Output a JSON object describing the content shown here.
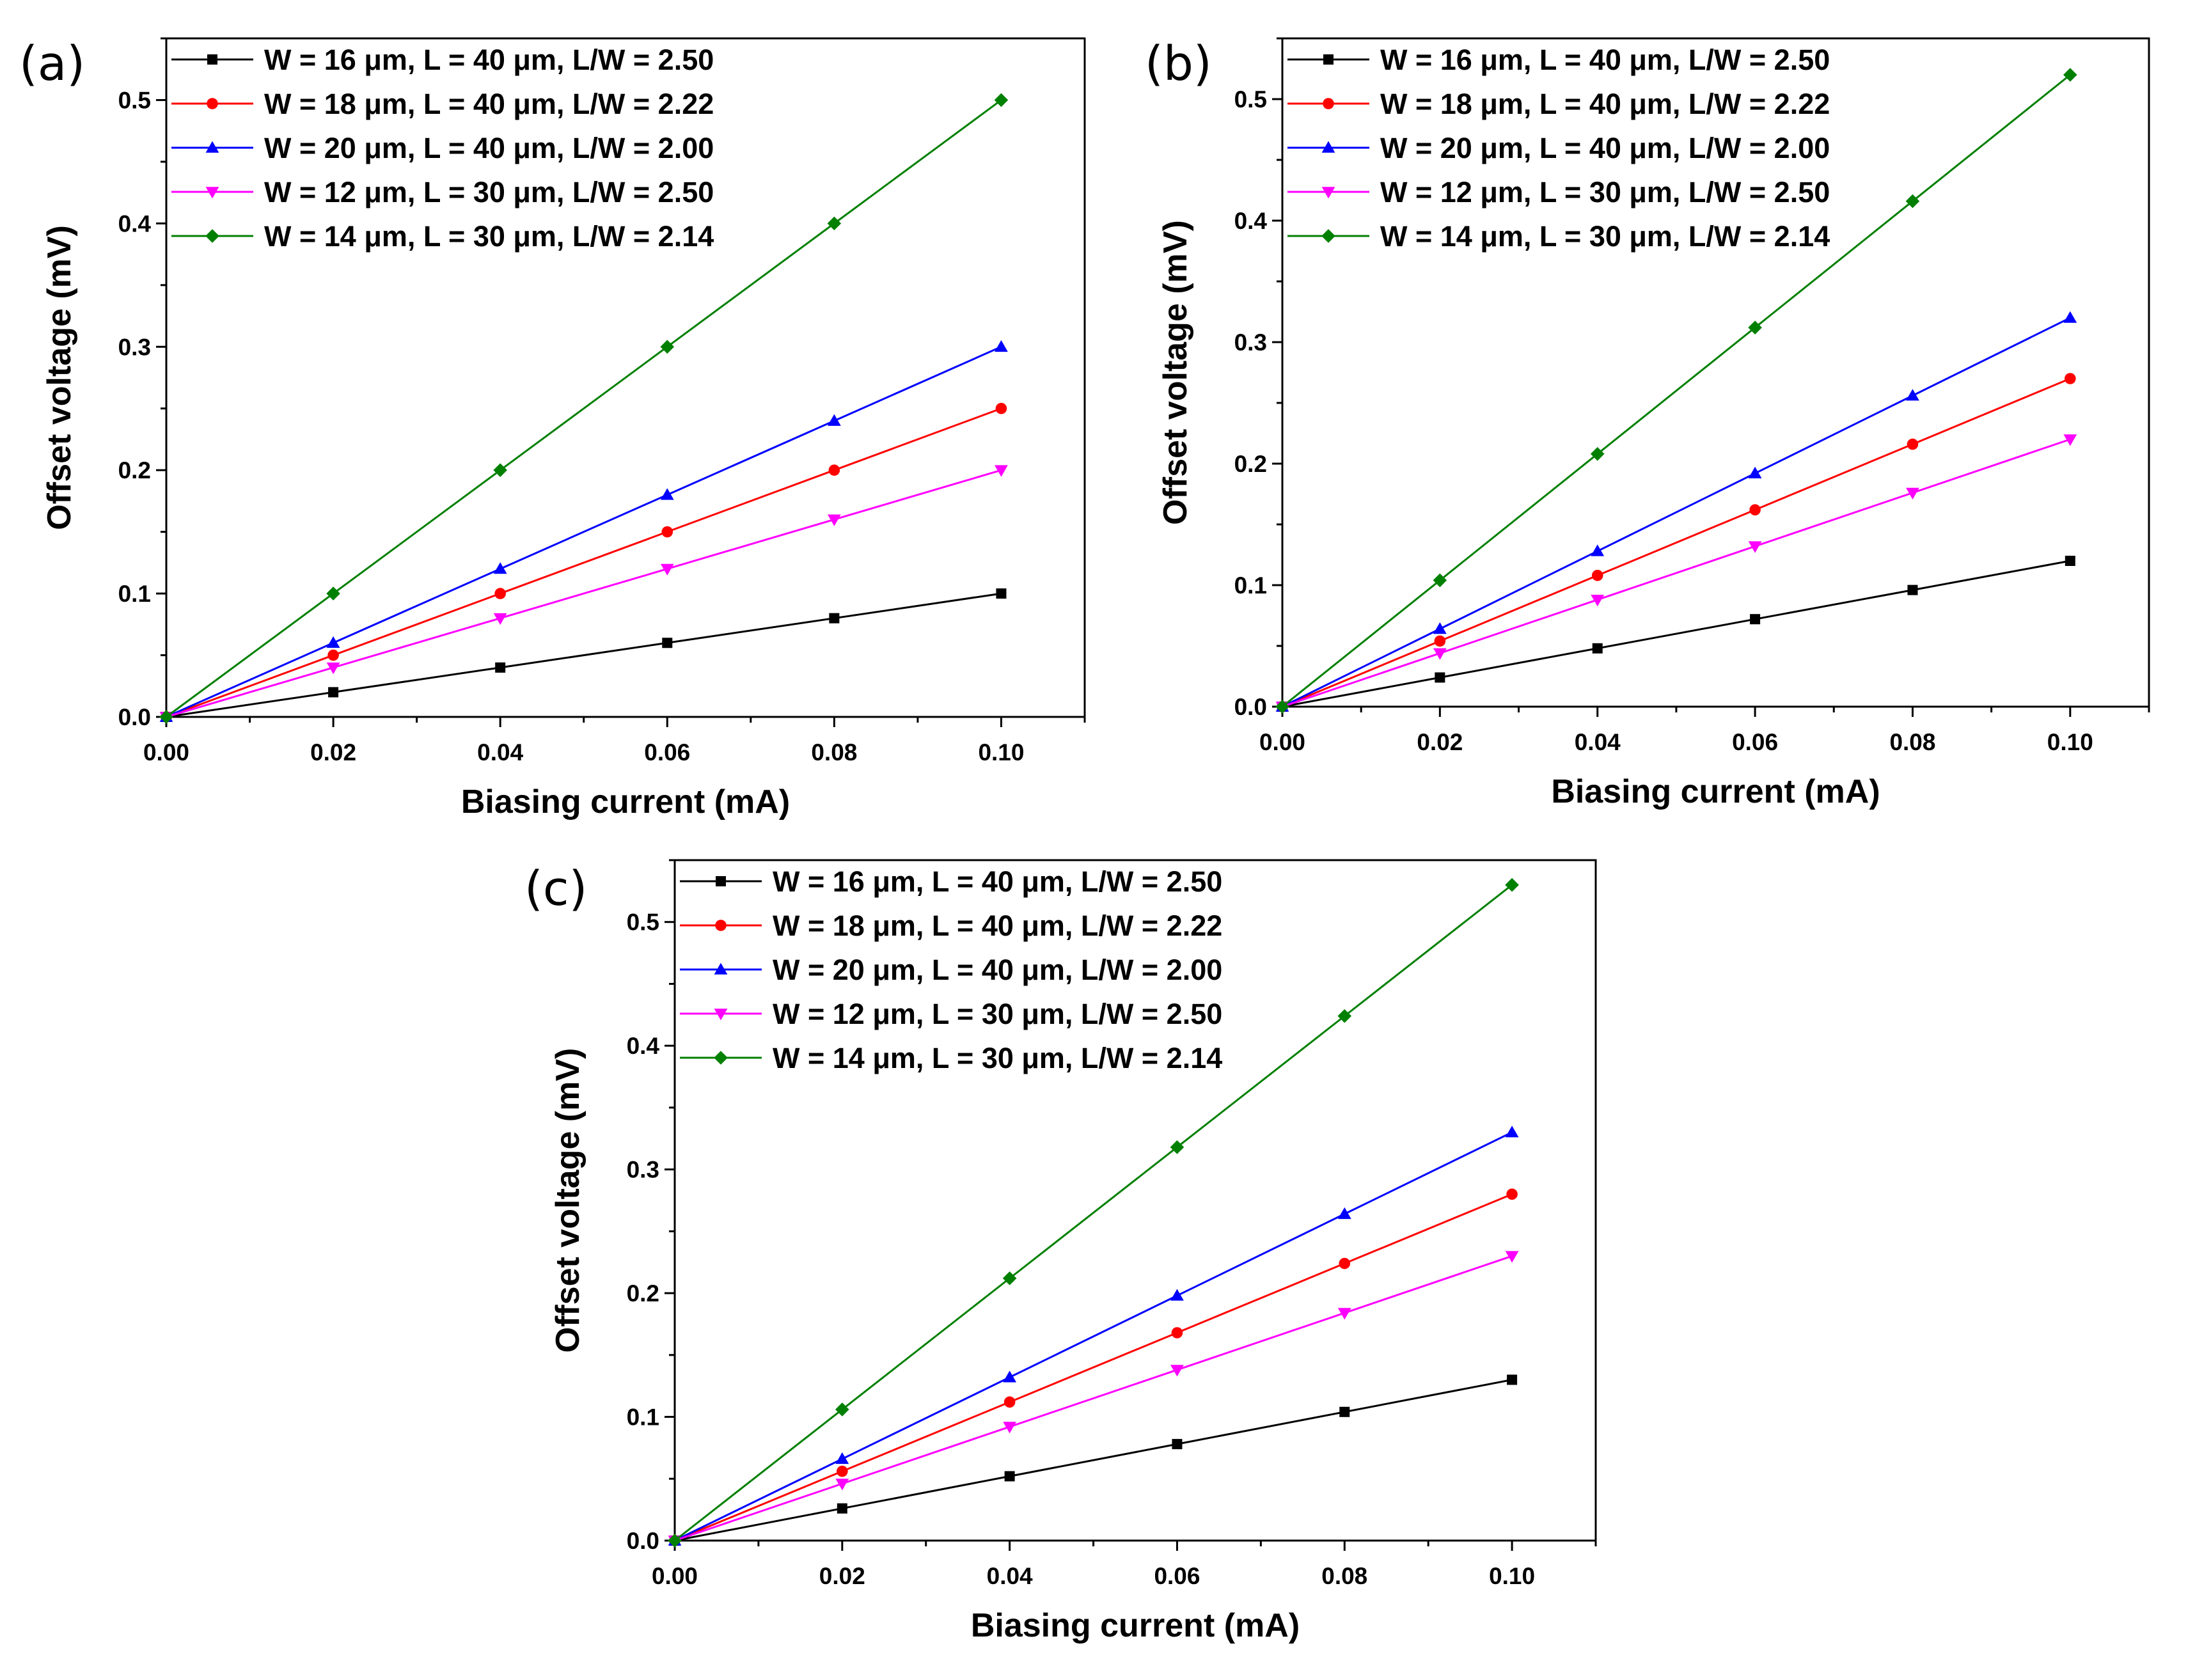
{
  "figure": {
    "chart_data": [
      {
        "type": "line",
        "panel_label": "(a)",
        "xlabel": "Biasing current (mA)",
        "ylabel": "Offset voltage (mV)",
        "xlim": [
          0,
          0.11
        ],
        "ylim": [
          0,
          0.55
        ],
        "x": [
          0,
          0.02,
          0.04,
          0.06,
          0.08,
          0.1
        ],
        "x_ticks": [
          "0.00",
          "0.02",
          "0.04",
          "0.06",
          "0.08",
          "0.10"
        ],
        "y_ticks": [
          "0.0",
          "0.1",
          "0.2",
          "0.3",
          "0.4",
          "0.5"
        ],
        "legend_position": "top-left",
        "series": [
          {
            "name": "W = 16 μm, L = 40 μm, L/W = 2.50",
            "color": "#000000",
            "marker": "square",
            "values": [
              0,
              0.02,
              0.04,
              0.06,
              0.08,
              0.1
            ]
          },
          {
            "name": "W = 18 μm, L = 40 μm, L/W = 2.22",
            "color": "#ff0000",
            "marker": "circle",
            "values": [
              0,
              0.05,
              0.1,
              0.15,
              0.2,
              0.25
            ]
          },
          {
            "name": "W = 20 μm, L = 40 μm, L/W = 2.00",
            "color": "#0000ff",
            "marker": "triangle-up",
            "values": [
              0,
              0.06,
              0.12,
              0.18,
              0.24,
              0.3
            ]
          },
          {
            "name": "W = 12 μm, L = 30 μm, L/W = 2.50",
            "color": "#ff00ff",
            "marker": "triangle-down",
            "values": [
              0,
              0.04,
              0.08,
              0.12,
              0.16,
              0.2
            ]
          },
          {
            "name": "W = 14 μm, L = 30 μm, L/W = 2.14",
            "color": "#008000",
            "marker": "diamond",
            "values": [
              0,
              0.1,
              0.2,
              0.3,
              0.4,
              0.5
            ]
          }
        ]
      },
      {
        "type": "line",
        "panel_label": "(b)",
        "xlabel": "Biasing current (mA)",
        "ylabel": "Offset voltage (mV)",
        "xlim": [
          0,
          0.11
        ],
        "ylim": [
          0,
          0.55
        ],
        "x": [
          0,
          0.02,
          0.04,
          0.06,
          0.08,
          0.1
        ],
        "x_ticks": [
          "0.00",
          "0.02",
          "0.04",
          "0.06",
          "0.08",
          "0.10"
        ],
        "y_ticks": [
          "0.0",
          "0.1",
          "0.2",
          "0.3",
          "0.4",
          "0.5"
        ],
        "legend_position": "top-left",
        "series": [
          {
            "name": "W = 16 μm, L = 40 μm, L/W = 2.50",
            "color": "#000000",
            "marker": "square",
            "values": [
              0,
              0.024,
              0.048,
              0.072,
              0.096,
              0.12
            ]
          },
          {
            "name": "W = 18 μm, L = 40 μm, L/W = 2.22",
            "color": "#ff0000",
            "marker": "circle",
            "values": [
              0,
              0.054,
              0.108,
              0.162,
              0.216,
              0.27
            ]
          },
          {
            "name": "W = 20 μm, L = 40 μm, L/W = 2.00",
            "color": "#0000ff",
            "marker": "triangle-up",
            "values": [
              0,
              0.064,
              0.128,
              0.192,
              0.256,
              0.32
            ]
          },
          {
            "name": "W = 12 μm, L = 30 μm, L/W = 2.50",
            "color": "#ff00ff",
            "marker": "triangle-down",
            "values": [
              0,
              0.044,
              0.088,
              0.132,
              0.176,
              0.22
            ]
          },
          {
            "name": "W = 14 μm, L = 30 μm, L/W = 2.14",
            "color": "#008000",
            "marker": "diamond",
            "values": [
              0,
              0.104,
              0.208,
              0.312,
              0.416,
              0.52
            ]
          }
        ]
      },
      {
        "type": "line",
        "panel_label": "(c)",
        "xlabel": "Biasing current (mA)",
        "ylabel": "Offset voltage (mV)",
        "xlim": [
          0,
          0.11
        ],
        "ylim": [
          0,
          0.55
        ],
        "x": [
          0,
          0.02,
          0.04,
          0.06,
          0.08,
          0.1
        ],
        "x_ticks": [
          "0.00",
          "0.02",
          "0.04",
          "0.06",
          "0.08",
          "0.10"
        ],
        "y_ticks": [
          "0.0",
          "0.1",
          "0.2",
          "0.3",
          "0.4",
          "0.5"
        ],
        "legend_position": "top-left",
        "series": [
          {
            "name": "W = 16 μm, L = 40 μm, L/W = 2.50",
            "color": "#000000",
            "marker": "square",
            "values": [
              0,
              0.026,
              0.052,
              0.078,
              0.104,
              0.13
            ]
          },
          {
            "name": "W = 18 μm, L = 40 μm, L/W = 2.22",
            "color": "#ff0000",
            "marker": "circle",
            "values": [
              0,
              0.056,
              0.112,
              0.168,
              0.224,
              0.28
            ]
          },
          {
            "name": "W = 20 μm, L = 40 μm, L/W = 2.00",
            "color": "#0000ff",
            "marker": "triangle-up",
            "values": [
              0,
              0.066,
              0.132,
              0.198,
              0.264,
              0.33
            ]
          },
          {
            "name": "W = 12 μm, L = 30 μm, L/W = 2.50",
            "color": "#ff00ff",
            "marker": "triangle-down",
            "values": [
              0,
              0.046,
              0.092,
              0.138,
              0.184,
              0.23
            ]
          },
          {
            "name": "W = 14 μm, L = 30 μm, L/W = 2.14",
            "color": "#008000",
            "marker": "diamond",
            "values": [
              0,
              0.106,
              0.212,
              0.318,
              0.424,
              0.53
            ]
          }
        ]
      }
    ]
  }
}
